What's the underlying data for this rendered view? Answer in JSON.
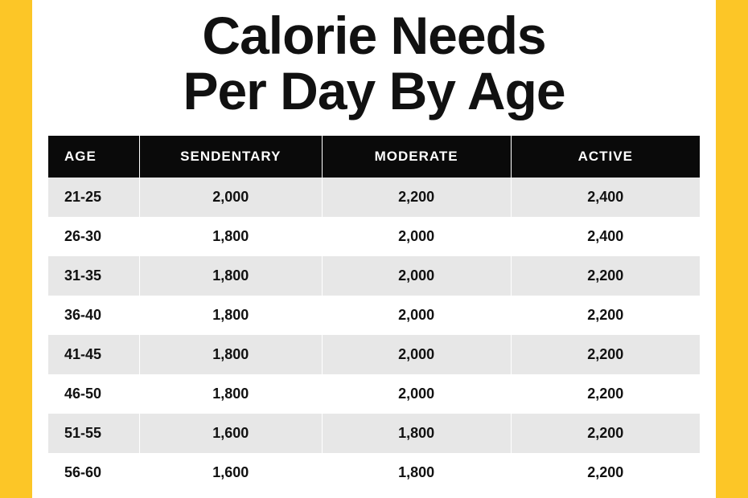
{
  "title_line1": "Calorie Needs",
  "title_line2": "Per Day By Age",
  "table": {
    "columns": [
      "AGE",
      "SENDENTARY",
      "MODERATE",
      "ACTIVE"
    ],
    "column_widths_pct": [
      14,
      28,
      29,
      29
    ],
    "header_bg": "#0a0a0a",
    "header_fg": "#ffffff",
    "row_odd_bg": "#e7e7e7",
    "row_even_bg": "#ffffff",
    "text_color": "#111111",
    "header_fontsize": 17,
    "cell_fontsize": 18,
    "rows": [
      [
        "21-25",
        "2,000",
        "2,200",
        "2,400"
      ],
      [
        "26-30",
        "1,800",
        "2,000",
        "2,400"
      ],
      [
        "31-35",
        "1,800",
        "2,000",
        "2,200"
      ],
      [
        "36-40",
        "1,800",
        "2,000",
        "2,200"
      ],
      [
        "41-45",
        "1,800",
        "2,000",
        "2,200"
      ],
      [
        "46-50",
        "1,800",
        "2,000",
        "2,200"
      ],
      [
        "51-55",
        "1,600",
        "1,800",
        "2,200"
      ],
      [
        "56-60",
        "1,600",
        "1,800",
        "2,200"
      ]
    ]
  },
  "page_bg": "#fcc627",
  "panel_bg": "#ffffff",
  "title_fontsize": 66,
  "title_weight": 900
}
